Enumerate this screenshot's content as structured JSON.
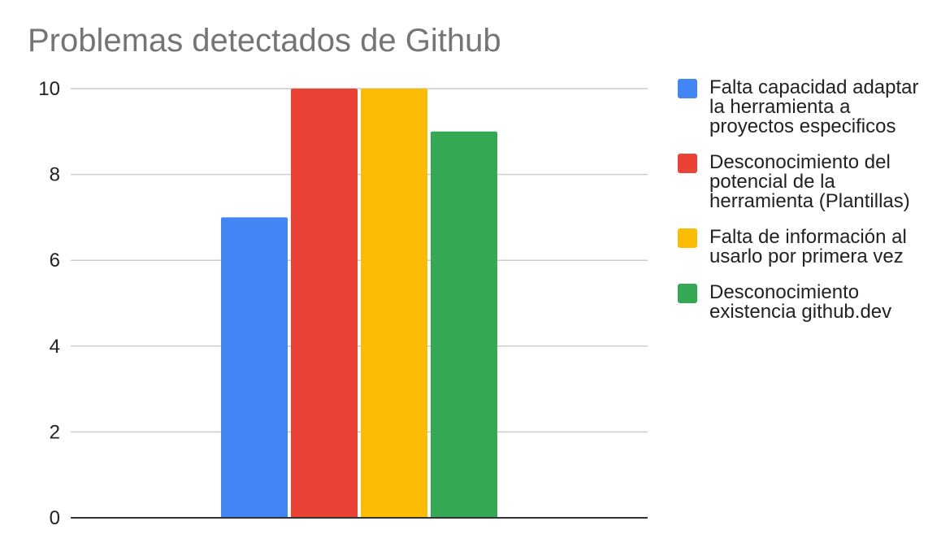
{
  "chart_data": {
    "type": "bar",
    "title": "Problemas detectados de Github",
    "xlabel": "",
    "ylabel": "",
    "ylim": [
      0,
      10
    ],
    "yticks": [
      0,
      2,
      4,
      6,
      8,
      10
    ],
    "grid": true,
    "legend_position": "right",
    "categories": [
      ""
    ],
    "series": [
      {
        "name": "Falta capacidad adaptar la herramienta a proyectos especificos",
        "values": [
          7
        ],
        "color": "#4285F4"
      },
      {
        "name": "Desconocimiento del potencial de la herramienta (Plantillas)",
        "values": [
          10
        ],
        "color": "#EA4335"
      },
      {
        "name": "Falta de información al usarlo por primera vez",
        "values": [
          10
        ],
        "color": "#FBBC04"
      },
      {
        "name": "Desconocimiento existencia github.dev",
        "values": [
          9
        ],
        "color": "#34A853"
      }
    ]
  }
}
